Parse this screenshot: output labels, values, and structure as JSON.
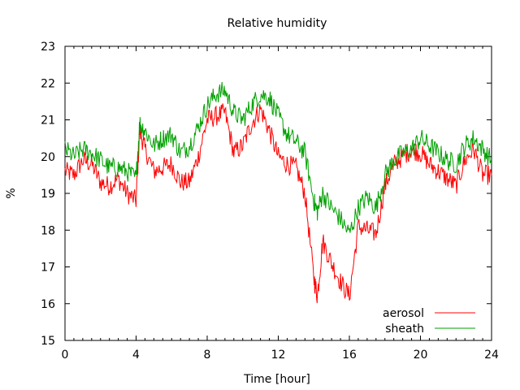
{
  "chart_data": {
    "type": "line",
    "title": "Relative humidity",
    "xlabel": "Time [hour]",
    "ylabel": "%",
    "xlim": [
      0,
      24
    ],
    "ylim": [
      15,
      23
    ],
    "x_ticks": [
      "0",
      "4",
      "8",
      "12",
      "16",
      "20",
      "24"
    ],
    "y_ticks": [
      "15",
      "16",
      "17",
      "18",
      "19",
      "20",
      "21",
      "22",
      "23"
    ],
    "grid": false,
    "legend_position": "bottom-right",
    "series": [
      {
        "name": "aerosol",
        "color": "#ff0000",
        "x": [
          0,
          0.5,
          1,
          1.5,
          2,
          2.5,
          3,
          3.5,
          4,
          4.2,
          4.5,
          5,
          5.5,
          6,
          6.5,
          7,
          7.5,
          8,
          8.5,
          9,
          9.5,
          10,
          10.5,
          11,
          11.5,
          12,
          12.5,
          13,
          13.5,
          14,
          14.2,
          14.5,
          15,
          15.5,
          16,
          16.5,
          17,
          17.5,
          18,
          18.5,
          19,
          19.5,
          20,
          20.5,
          21,
          21.5,
          22,
          22.5,
          23,
          23.5,
          24
        ],
        "y": [
          19.6,
          19.5,
          19.9,
          19.8,
          19.3,
          19.2,
          19.4,
          19.0,
          18.8,
          20.7,
          20.2,
          19.6,
          19.7,
          19.8,
          19.3,
          19.3,
          20.0,
          21.0,
          21.1,
          21.2,
          20.1,
          20.3,
          20.9,
          21.3,
          20.7,
          20.0,
          19.8,
          19.7,
          19.0,
          16.7,
          16.2,
          17.7,
          17.1,
          16.6,
          16.2,
          18.1,
          18.0,
          17.9,
          19.2,
          19.8,
          20.0,
          20.2,
          20.1,
          19.8,
          19.6,
          19.4,
          19.2,
          19.9,
          20.2,
          19.5,
          19.5
        ]
      },
      {
        "name": "sheath",
        "color": "#00a000",
        "x": [
          0,
          0.5,
          1,
          1.5,
          2,
          2.5,
          3,
          3.5,
          4,
          4.2,
          4.5,
          5,
          5.5,
          6,
          6.5,
          7,
          7.5,
          8,
          8.5,
          9,
          9.5,
          10,
          10.5,
          11,
          11.5,
          12,
          12.5,
          13,
          13.5,
          14,
          14.2,
          14.5,
          15,
          15.5,
          16,
          16.5,
          17,
          17.5,
          18,
          18.5,
          19,
          19.5,
          20,
          20.5,
          21,
          21.5,
          22,
          22.5,
          23,
          23.5,
          24
        ],
        "y": [
          20.2,
          20.0,
          20.2,
          20.1,
          19.9,
          19.7,
          19.7,
          19.6,
          19.4,
          20.9,
          20.7,
          20.3,
          20.5,
          20.6,
          20.1,
          20.3,
          20.8,
          21.4,
          21.7,
          21.8,
          21.2,
          21.0,
          21.4,
          21.7,
          21.6,
          21.1,
          20.6,
          20.4,
          20.1,
          18.8,
          18.5,
          19.0,
          18.6,
          18.3,
          17.9,
          18.6,
          18.9,
          18.6,
          19.5,
          19.9,
          20.1,
          20.2,
          20.5,
          20.3,
          20.1,
          19.9,
          19.8,
          20.3,
          20.5,
          20.2,
          19.9
        ]
      }
    ]
  }
}
